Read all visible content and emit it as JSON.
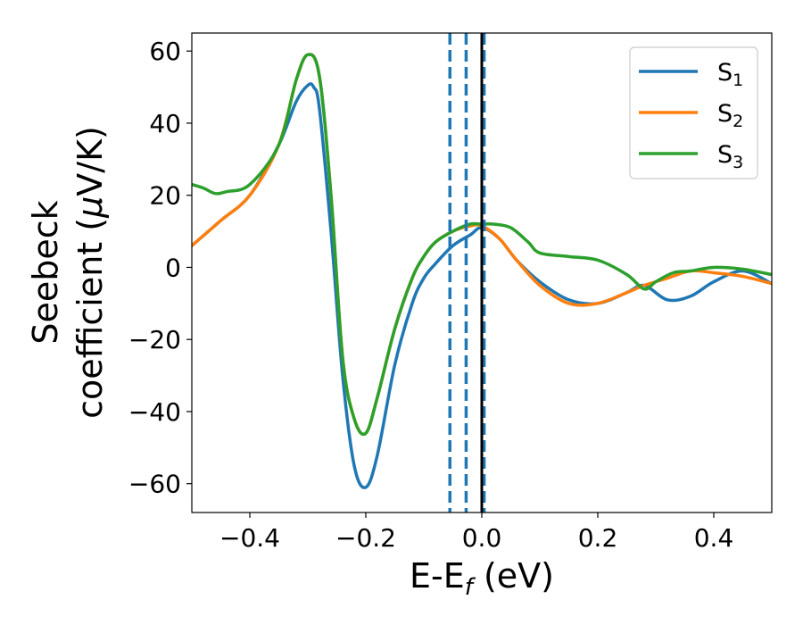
{
  "chart_data": {
    "type": "line",
    "title": "",
    "xlabel": {
      "main": "E-E",
      "sub": "f",
      "tail": " (eV)"
    },
    "ylabel": {
      "line1": "Seebeck",
      "line2_pre": "coefficient  (",
      "mu": "μ",
      "line2_post": "V/K)"
    },
    "xlim": [
      -0.5,
      0.5
    ],
    "ylim": [
      -68,
      65
    ],
    "xticks": [
      -0.4,
      -0.2,
      0.0,
      0.2,
      0.4
    ],
    "xtick_labels": [
      "−0.4",
      "−0.2",
      "0.0",
      "0.2",
      "0.4"
    ],
    "yticks": [
      -60,
      -40,
      -20,
      0,
      20,
      40,
      60
    ],
    "ytick_labels": [
      "−60",
      "−40",
      "−20",
      "0",
      "20",
      "40",
      "60"
    ],
    "grid": false,
    "legend_position": "top-right",
    "vlines": [
      {
        "x": -0.055,
        "style": "dashed",
        "color": "#1f77b4"
      },
      {
        "x": -0.027,
        "style": "dashed",
        "color": "#1f77b4"
      },
      {
        "x": 0.004,
        "style": "dashed",
        "color": "#1f77b4"
      },
      {
        "x": 0.0,
        "style": "solid",
        "color": "#000000"
      }
    ],
    "series": [
      {
        "name": "S",
        "sub": "1",
        "color": "#1f77b4",
        "x": [
          -0.5,
          -0.45,
          -0.4,
          -0.35,
          -0.32,
          -0.3,
          -0.29,
          -0.28,
          -0.26,
          -0.24,
          -0.22,
          -0.2,
          -0.18,
          -0.15,
          -0.12,
          -0.1,
          -0.08,
          -0.05,
          -0.02,
          0.0,
          0.03,
          0.06,
          0.1,
          0.15,
          0.2,
          0.25,
          0.28,
          0.32,
          0.36,
          0.4,
          0.45,
          0.5
        ],
        "y": [
          6,
          13,
          20,
          34,
          46,
          50.5,
          50,
          44,
          10,
          -30,
          -55,
          -61,
          -52,
          -27,
          -10,
          -3,
          1,
          6,
          9,
          11,
          8,
          2,
          -4,
          -9,
          -10,
          -7,
          -5,
          -9,
          -8,
          -4,
          -1,
          -4.5
        ]
      },
      {
        "name": "S",
        "sub": "2",
        "color": "#ff7f0e",
        "x": [
          -0.5,
          -0.45,
          -0.4,
          -0.35,
          -0.32,
          -0.3,
          -0.28,
          -0.26,
          -0.24,
          -0.22,
          -0.2,
          -0.18,
          -0.15,
          -0.12,
          -0.1,
          -0.08,
          -0.05,
          -0.02,
          0.0,
          0.03,
          0.06,
          0.1,
          0.15,
          0.2,
          0.25,
          0.28,
          0.32,
          0.36,
          0.4,
          0.45,
          0.5
        ],
        "y": [
          6,
          13,
          20,
          34,
          52,
          59,
          53,
          20,
          -25,
          -42,
          -46,
          -36,
          -17,
          -3,
          3,
          7,
          10,
          11.5,
          11.5,
          8,
          2,
          -5,
          -10,
          -10,
          -7,
          -5,
          -3,
          -1,
          -1.5,
          -2.5,
          -4.5
        ]
      },
      {
        "name": "S",
        "sub": "3",
        "color": "#2ca02c",
        "x": [
          -0.5,
          -0.48,
          -0.46,
          -0.44,
          -0.4,
          -0.35,
          -0.32,
          -0.3,
          -0.28,
          -0.26,
          -0.24,
          -0.22,
          -0.2,
          -0.18,
          -0.15,
          -0.12,
          -0.1,
          -0.08,
          -0.05,
          -0.02,
          0.0,
          0.02,
          0.05,
          0.08,
          0.1,
          0.15,
          0.2,
          0.25,
          0.28,
          0.3,
          0.33,
          0.36,
          0.4,
          0.45,
          0.5
        ],
        "y": [
          23,
          22,
          20.5,
          21,
          23,
          34,
          52,
          59,
          53,
          20,
          -25,
          -42,
          -46,
          -36,
          -17,
          -3,
          3,
          7,
          10,
          12,
          12,
          12,
          11,
          7,
          4,
          3,
          2,
          -2,
          -6,
          -4,
          -1.5,
          -1,
          0,
          -0.5,
          -2
        ]
      }
    ]
  }
}
